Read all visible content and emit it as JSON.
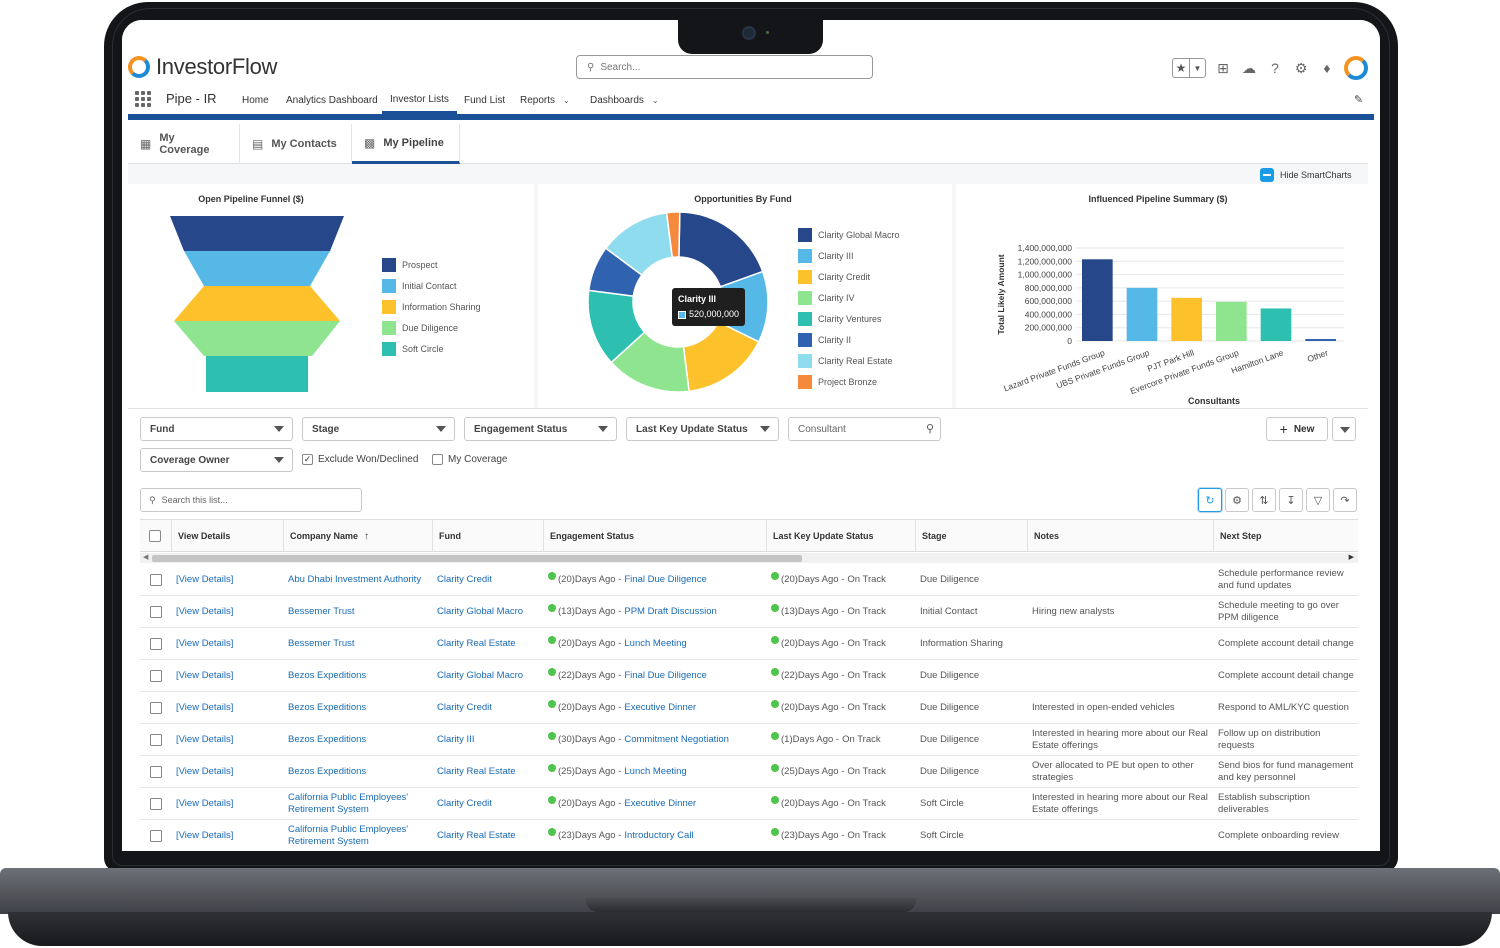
{
  "app": {
    "logo_text": "InvestorFlow",
    "app_name": "Pipe - IR",
    "search_placeholder": "Search..."
  },
  "nav": {
    "tabs": [
      "Home",
      "Analytics Dashboard",
      "Investor Lists",
      "Fund List",
      "Reports",
      "Dashboards"
    ],
    "active_tab": "Investor Lists"
  },
  "subtabs": {
    "items": [
      "My Coverage",
      "My Contacts",
      "My Pipeline"
    ],
    "active": "My Pipeline"
  },
  "smartcharts_toggle": "Hide SmartCharts",
  "funnel_chart": {
    "title": "Open Pipeline Funnel ($)",
    "legend": [
      "Prospect",
      "Initial Contact",
      "Information Sharing",
      "Due Diligence",
      "Soft Circle"
    ],
    "colors": [
      "#26478a",
      "#56b8e6",
      "#fdc12c",
      "#8ee48f",
      "#2dc0b0"
    ]
  },
  "chart_data": [
    {
      "type": "funnel",
      "title": "Open Pipeline Funnel ($)",
      "categories": [
        "Prospect",
        "Initial Contact",
        "Information Sharing",
        "Due Diligence",
        "Soft Circle"
      ],
      "colors": [
        "#26478a",
        "#56b8e6",
        "#fdc12c",
        "#8ee48f",
        "#2dc0b0"
      ]
    },
    {
      "type": "pie",
      "title": "Opportunities By Fund",
      "categories": [
        "Clarity Global Macro",
        "Clarity III",
        "Clarity Credit",
        "Clarity IV",
        "Clarity Ventures",
        "Clarity II",
        "Clarity Real Estate",
        "Project Bronze"
      ],
      "values": [
        780000000,
        520000000,
        640000000,
        620000000,
        560000000,
        330000000,
        520000000,
        95000000
      ],
      "colors": [
        "#26478a",
        "#56b8e6",
        "#fdc12c",
        "#8ee48f",
        "#2dc0b0",
        "#2f63b0",
        "#8fdcef",
        "#f58a3c"
      ],
      "tooltip": {
        "label": "Clarity III",
        "value": "520,000,000"
      }
    },
    {
      "type": "bar",
      "title": "Influenced Pipeline Summary ($)",
      "xlabel": "Consultants",
      "ylabel": "Total Likely Amount",
      "categories": [
        "Lazard Private Funds Group",
        "UBS Private Funds Group",
        "PJT Park Hill",
        "Evercore Private Funds Group",
        "Hamilton Lane",
        "Other"
      ],
      "values": [
        1230000000,
        800000000,
        650000000,
        590000000,
        490000000,
        30000000
      ],
      "colors": [
        "#26478a",
        "#56b8e6",
        "#fdc12c",
        "#8ee48f",
        "#2dc0b0",
        "#2f63b0"
      ],
      "ylim": [
        0,
        1400000000
      ],
      "yticks": [
        "1,400,000,000",
        "1,200,000,000",
        "1,000,000,000",
        "800,000,000",
        "600,000,000",
        "400,000,000",
        "200,000,000",
        "0"
      ]
    }
  ],
  "pie_chart": {
    "title": "Opportunities By Fund",
    "legend": [
      "Clarity Global Macro",
      "Clarity III",
      "Clarity Credit",
      "Clarity IV",
      "Clarity Ventures",
      "Clarity II",
      "Clarity Real Estate",
      "Project Bronze"
    ],
    "tooltip_label": "Clarity III",
    "tooltip_value": "520,000,000"
  },
  "bar_chart": {
    "title": "Influenced Pipeline Summary ($)",
    "xlabel": "Consultants",
    "ylabel": "Total Likely Amount"
  },
  "filters": {
    "fund": "Fund",
    "stage": "Stage",
    "engagement_status": "Engagement Status",
    "last_key_update_status": "Last Key Update Status",
    "consultant_placeholder": "Consultant",
    "coverage_owner": "Coverage Owner",
    "exclude_won_declined": "Exclude Won/Declined",
    "my_coverage": "My Coverage",
    "new_button": "New"
  },
  "list_search_placeholder": "Search this list...",
  "table": {
    "columns": [
      "View Details",
      "Company Name",
      "Fund",
      "Engagement Status",
      "Last Key Update Status",
      "Stage",
      "Notes",
      "Next Step"
    ],
    "rows": [
      {
        "view": "[View Details]",
        "company": "Abu Dhabi Investment Authority",
        "fund": "Clarity Credit",
        "eng_days": "(20)Days Ago - ",
        "eng_event": "Final Due Diligence",
        "upd_days": "(20)Days Ago - ",
        "upd_status": "On Track",
        "stage": "Due Diligence",
        "notes": "",
        "next": "Schedule performance review and fund updates"
      },
      {
        "view": "[View Details]",
        "company": "Bessemer Trust",
        "fund": "Clarity Global Macro",
        "eng_days": "(13)Days Ago - ",
        "eng_event": "PPM Draft Discussion",
        "upd_days": "(13)Days Ago - ",
        "upd_status": "On Track",
        "stage": "Initial Contact",
        "notes": "Hiring new analysts",
        "next": "Schedule meeting to go over PPM diligence"
      },
      {
        "view": "[View Details]",
        "company": "Bessemer Trust",
        "fund": "Clarity Real Estate",
        "eng_days": "(20)Days Ago - ",
        "eng_event": "Lunch Meeting",
        "upd_days": "(20)Days Ago - ",
        "upd_status": "On Track",
        "stage": "Information Sharing",
        "notes": "",
        "next": "Complete account detail change"
      },
      {
        "view": "[View Details]",
        "company": "Bezos Expeditions",
        "fund": "Clarity Global Macro",
        "eng_days": "(22)Days Ago - ",
        "eng_event": "Final Due Diligence",
        "upd_days": "(22)Days Ago - ",
        "upd_status": "On Track",
        "stage": "Due Diligence",
        "notes": "",
        "next": "Complete account detail change"
      },
      {
        "view": "[View Details]",
        "company": "Bezos Expeditions",
        "fund": "Clarity Credit",
        "eng_days": "(20)Days Ago - ",
        "eng_event": "Executive Dinner",
        "upd_days": "(20)Days Ago - ",
        "upd_status": "On Track",
        "stage": "Due Diligence",
        "notes": "Interested in open-ended vehicles",
        "next": "Respond to AML/KYC question"
      },
      {
        "view": "[View Details]",
        "company": "Bezos Expeditions",
        "fund": "Clarity III",
        "eng_days": "(30)Days Ago - ",
        "eng_event": "Commitment Negotiation",
        "upd_days": "(1)Days Ago - ",
        "upd_status": "On Track",
        "stage": "Due Diligence",
        "notes": "Interested in hearing more about our Real Estate offerings",
        "next": "Follow up on distribution requests"
      },
      {
        "view": "[View Details]",
        "company": "Bezos Expeditions",
        "fund": "Clarity Real Estate",
        "eng_days": "(25)Days Ago - ",
        "eng_event": "Lunch Meeting",
        "upd_days": "(25)Days Ago - ",
        "upd_status": "On Track",
        "stage": "Due Diligence",
        "notes": "Over allocated to PE but open to other strategies",
        "next": "Send bios for fund management and key personnel"
      },
      {
        "view": "[View Details]",
        "company": "California Public Employees' Retirement System",
        "fund": "Clarity Credit",
        "eng_days": "(20)Days Ago - ",
        "eng_event": "Executive Dinner",
        "upd_days": "(20)Days Ago - ",
        "upd_status": "On Track",
        "stage": "Soft Circle",
        "notes": "Interested in hearing more about our Real Estate offerings",
        "next": "Establish subscription deliverables"
      },
      {
        "view": "[View Details]",
        "company": "California Public Employees' Retirement System",
        "fund": "Clarity Real Estate",
        "eng_days": "(23)Days Ago - ",
        "eng_event": "Introductory Call",
        "upd_days": "(23)Days Ago - ",
        "upd_status": "On Track",
        "stage": "Soft Circle",
        "notes": "",
        "next": "Complete onboarding review"
      }
    ]
  }
}
